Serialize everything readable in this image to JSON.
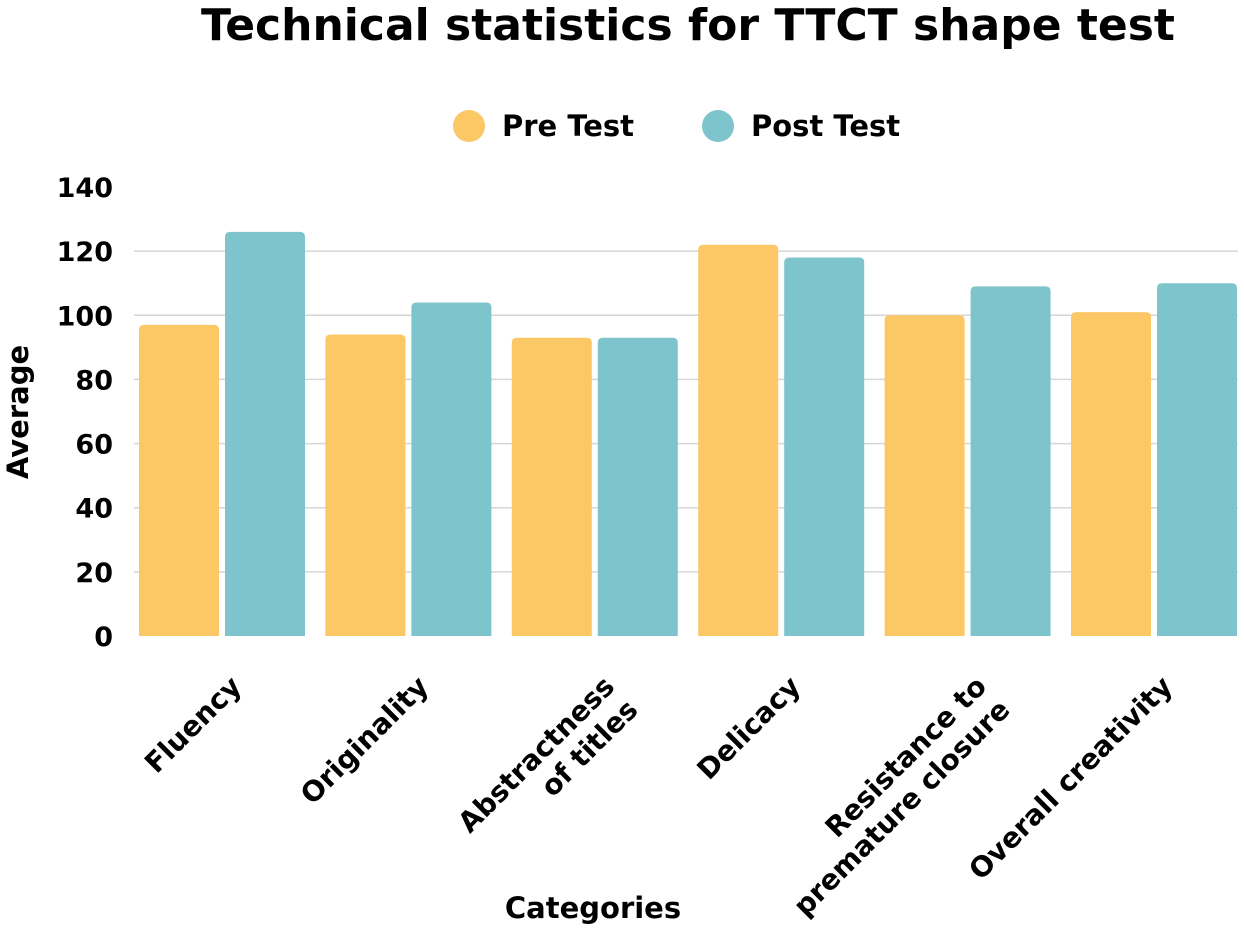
{
  "chart_data": {
    "type": "bar",
    "title": "Technical statistics for TTCT shape test",
    "xlabel": "Categories",
    "ylabel": "Average",
    "ylim": [
      0,
      140
    ],
    "yticks": [
      0,
      20,
      40,
      60,
      80,
      100,
      120,
      140
    ],
    "grid": true,
    "legend_position": "top-center",
    "categories": [
      [
        "Fluency"
      ],
      [
        "Originality"
      ],
      [
        "Abstractness",
        "of titles"
      ],
      [
        "Delicacy"
      ],
      [
        "Resistance to",
        "premature closure"
      ],
      [
        "Overall creativity"
      ]
    ],
    "series": [
      {
        "name": "Pre Test",
        "color": "#FCC865",
        "values": [
          97,
          94,
          93,
          122,
          100,
          101
        ]
      },
      {
        "name": "Post Test",
        "color": "#7EC4CC",
        "values": [
          126,
          104,
          93,
          118,
          109,
          110
        ]
      }
    ]
  }
}
